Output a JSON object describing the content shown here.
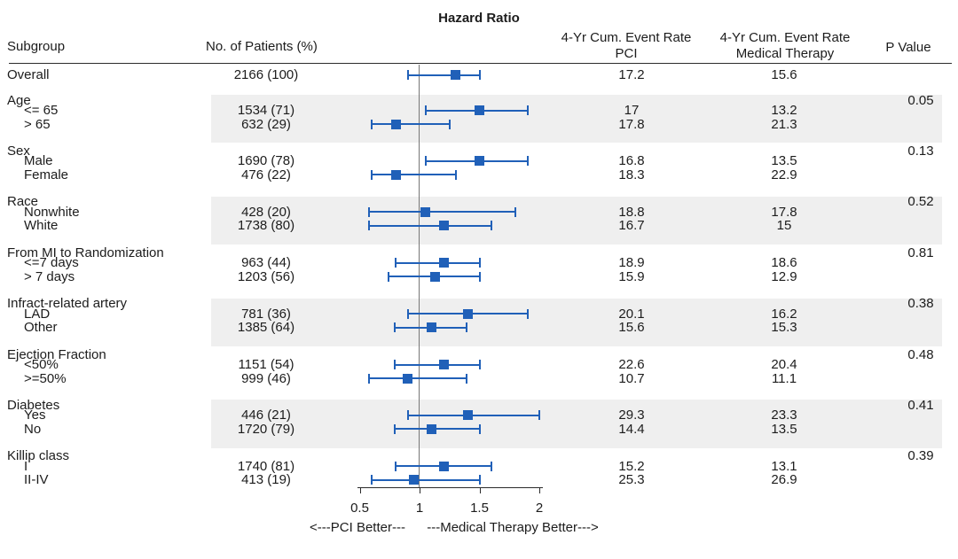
{
  "columns": {
    "subgroup": "Subgroup",
    "patients": "No. of Patients (%)",
    "pci_line1": "4-Yr Cum. Event Rate",
    "pci_line2": "PCI",
    "mt_line1": "4-Yr Cum. Event Rate",
    "mt_line2": "Medical Therapy",
    "pvalue": "P Value"
  },
  "colors": {
    "marker_blue": "#2060b8",
    "band_gray": "#efefef",
    "refline_gray": "#777777",
    "axis_black": "#2b2b2b",
    "text": "#1c1c1c"
  },
  "chart_data": {
    "type": "forest",
    "title": "Hazard Ratio",
    "x_ticks": [
      0.5,
      1,
      1.5,
      2
    ],
    "x_tick_labels": [
      "0.5",
      "1",
      "1.5",
      "2"
    ],
    "xlim": [
      0.45,
      2.05
    ],
    "refline": 1,
    "axis_note_left": "<---PCI Better---",
    "axis_note_right": "---Medical Therapy Better--->",
    "grid": false,
    "overall": {
      "label": "Overall",
      "patients": "2166 (100)",
      "hr": {
        "lo": 0.9,
        "pt": 1.3,
        "hi": 1.5
      },
      "pci": "17.2",
      "mt": "15.6"
    },
    "groups": [
      {
        "label": "Age",
        "p": "0.05",
        "shaded": true,
        "items": [
          {
            "label": "<= 65",
            "patients": "1534 (71)",
            "hr": {
              "lo": 1.05,
              "pt": 1.5,
              "hi": 1.9
            },
            "pci": "17",
            "mt": "13.2"
          },
          {
            "label": "> 65",
            "patients": "632 (29)",
            "hr": {
              "lo": 0.6,
              "pt": 0.8,
              "hi": 1.25
            },
            "pci": "17.8",
            "mt": "21.3"
          }
        ]
      },
      {
        "label": "Sex",
        "p": "0.13",
        "shaded": false,
        "items": [
          {
            "label": "Male",
            "patients": "1690 (78)",
            "hr": {
              "lo": 1.05,
              "pt": 1.5,
              "hi": 1.9
            },
            "pci": "16.8",
            "mt": "13.5"
          },
          {
            "label": "Female",
            "patients": "476 (22)",
            "hr": {
              "lo": 0.6,
              "pt": 0.8,
              "hi": 1.3
            },
            "pci": "18.3",
            "mt": "22.9"
          }
        ]
      },
      {
        "label": "Race",
        "p": "0.52",
        "shaded": true,
        "items": [
          {
            "label": "Nonwhite",
            "patients": "428 (20)",
            "hr": {
              "lo": 0.58,
              "pt": 1.05,
              "hi": 1.8
            },
            "pci": "18.8",
            "mt": "17.8"
          },
          {
            "label": "White",
            "patients": "1738 (80)",
            "hr": {
              "lo": 0.58,
              "pt": 1.2,
              "hi": 1.6
            },
            "pci": "16.7",
            "mt": "15"
          }
        ]
      },
      {
        "label": "From MI to Randomization",
        "p": "0.81",
        "shaded": false,
        "items": [
          {
            "label": "<=7 days",
            "patients": "963 (44)",
            "hr": {
              "lo": 0.8,
              "pt": 1.2,
              "hi": 1.5
            },
            "pci": "18.9",
            "mt": "18.6"
          },
          {
            "label": "> 7 days",
            "patients": "1203 (56)",
            "hr": {
              "lo": 0.74,
              "pt": 1.13,
              "hi": 1.5
            },
            "pci": "15.9",
            "mt": "12.9"
          }
        ]
      },
      {
        "label": "Infract-related artery",
        "p": "0.38",
        "shaded": true,
        "items": [
          {
            "label": "LAD",
            "patients": "781 (36)",
            "hr": {
              "lo": 0.9,
              "pt": 1.4,
              "hi": 1.9
            },
            "pci": "20.1",
            "mt": "16.2"
          },
          {
            "label": "Other",
            "patients": "1385 (64)",
            "hr": {
              "lo": 0.79,
              "pt": 1.1,
              "hi": 1.39
            },
            "pci": "15.6",
            "mt": "15.3"
          }
        ]
      },
      {
        "label": "Ejection Fraction",
        "p": "0.48",
        "shaded": false,
        "items": [
          {
            "label": "<50%",
            "patients": "1151 (54)",
            "hr": {
              "lo": 0.79,
              "pt": 1.2,
              "hi": 1.5
            },
            "pci": "22.6",
            "mt": "20.4"
          },
          {
            "label": ">=50%",
            "patients": "999 (46)",
            "hr": {
              "lo": 0.58,
              "pt": 0.9,
              "hi": 1.39
            },
            "pci": "10.7",
            "mt": "11.1"
          }
        ]
      },
      {
        "label": "Diabetes",
        "p": "0.41",
        "shaded": true,
        "items": [
          {
            "label": "Yes",
            "patients": "446 (21)",
            "hr": {
              "lo": 0.9,
              "pt": 1.4,
              "hi": 2.0
            },
            "pci": "29.3",
            "mt": "23.3"
          },
          {
            "label": "No",
            "patients": "1720 (79)",
            "hr": {
              "lo": 0.79,
              "pt": 1.1,
              "hi": 1.5
            },
            "pci": "14.4",
            "mt": "13.5"
          }
        ]
      },
      {
        "label": "Killip class",
        "p": "0.39",
        "shaded": false,
        "items": [
          {
            "label": "I",
            "patients": "1740 (81)",
            "hr": {
              "lo": 0.8,
              "pt": 1.2,
              "hi": 1.6
            },
            "pci": "15.2",
            "mt": "13.1"
          },
          {
            "label": "II-IV",
            "patients": "413 (19)",
            "hr": {
              "lo": 0.6,
              "pt": 0.95,
              "hi": 1.5
            },
            "pci": "25.3",
            "mt": "26.9"
          }
        ]
      }
    ]
  }
}
